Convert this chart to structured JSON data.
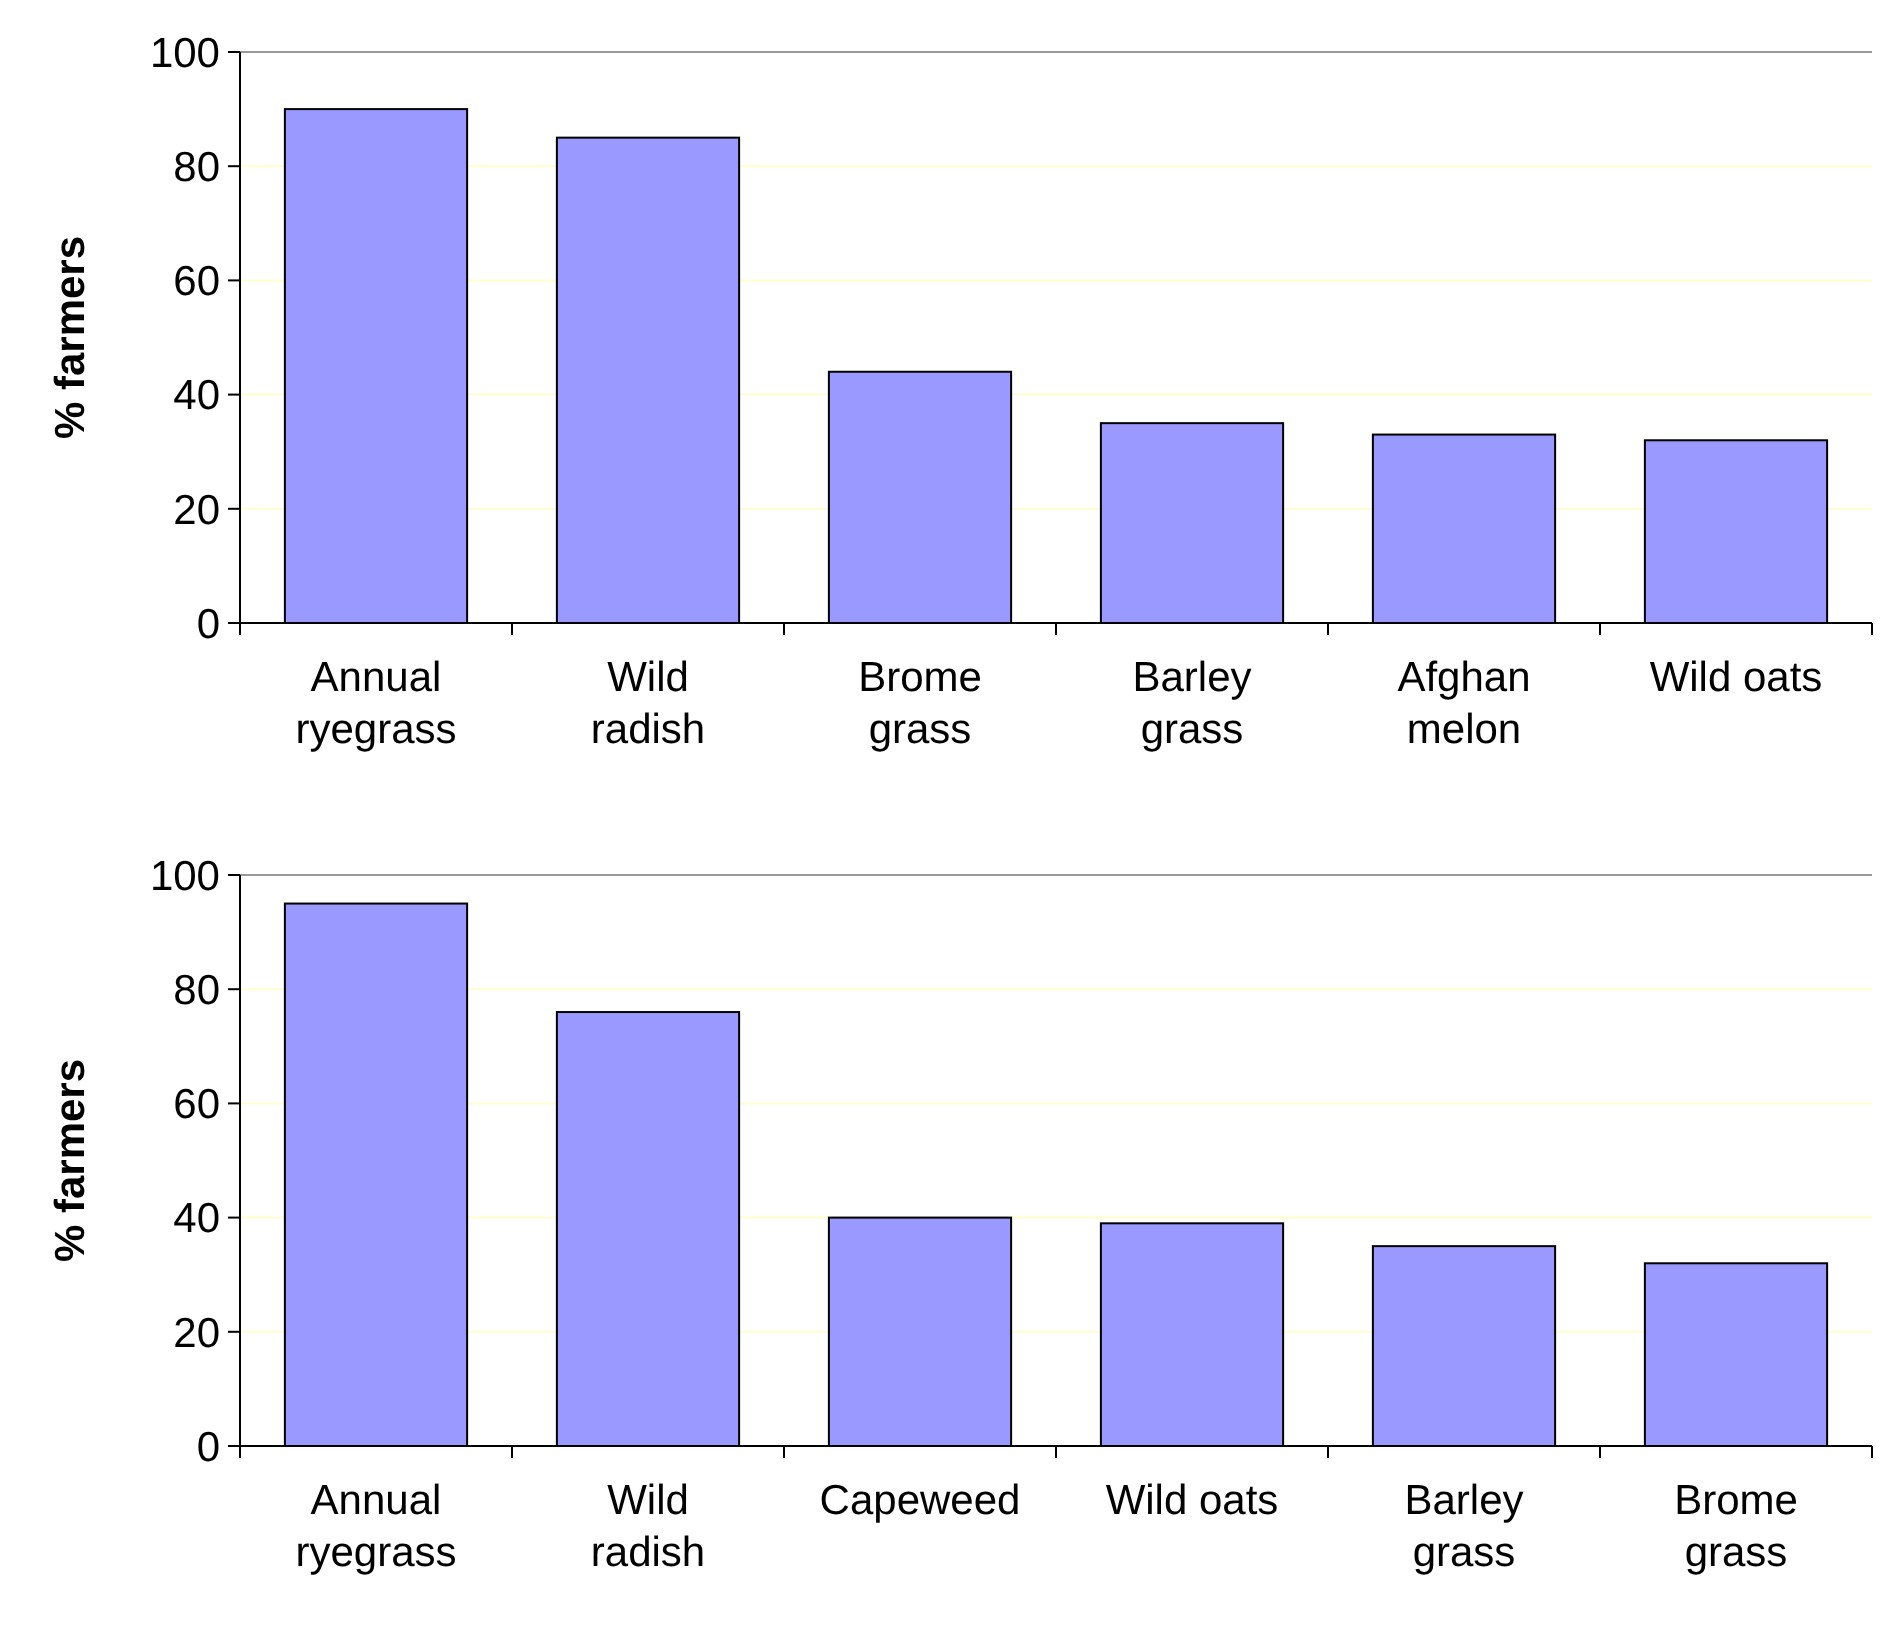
{
  "chart_data": [
    {
      "type": "bar",
      "ylabel": "% farmers",
      "categories": [
        "Annual ryegrass",
        "Wild radish",
        "Brome grass",
        "Barley grass",
        "Afghan melon",
        "Wild oats"
      ],
      "values": [
        90,
        85,
        44,
        35,
        33,
        32
      ],
      "color": "#9999ff",
      "ylim": [
        0,
        100
      ],
      "yticks": [
        0,
        20,
        40,
        60,
        80,
        100
      ],
      "grid": "y"
    },
    {
      "type": "bar",
      "ylabel": "% farmers",
      "categories": [
        "Annual ryegrass",
        "Wild radish",
        "Capeweed",
        "Wild oats",
        "Barley grass",
        "Brome grass"
      ],
      "values": [
        95,
        76,
        40,
        39,
        35,
        32
      ],
      "color": "#9999ff",
      "ylim": [
        0,
        100
      ],
      "yticks": [
        0,
        20,
        40,
        60,
        80,
        100
      ],
      "grid": "y"
    }
  ]
}
